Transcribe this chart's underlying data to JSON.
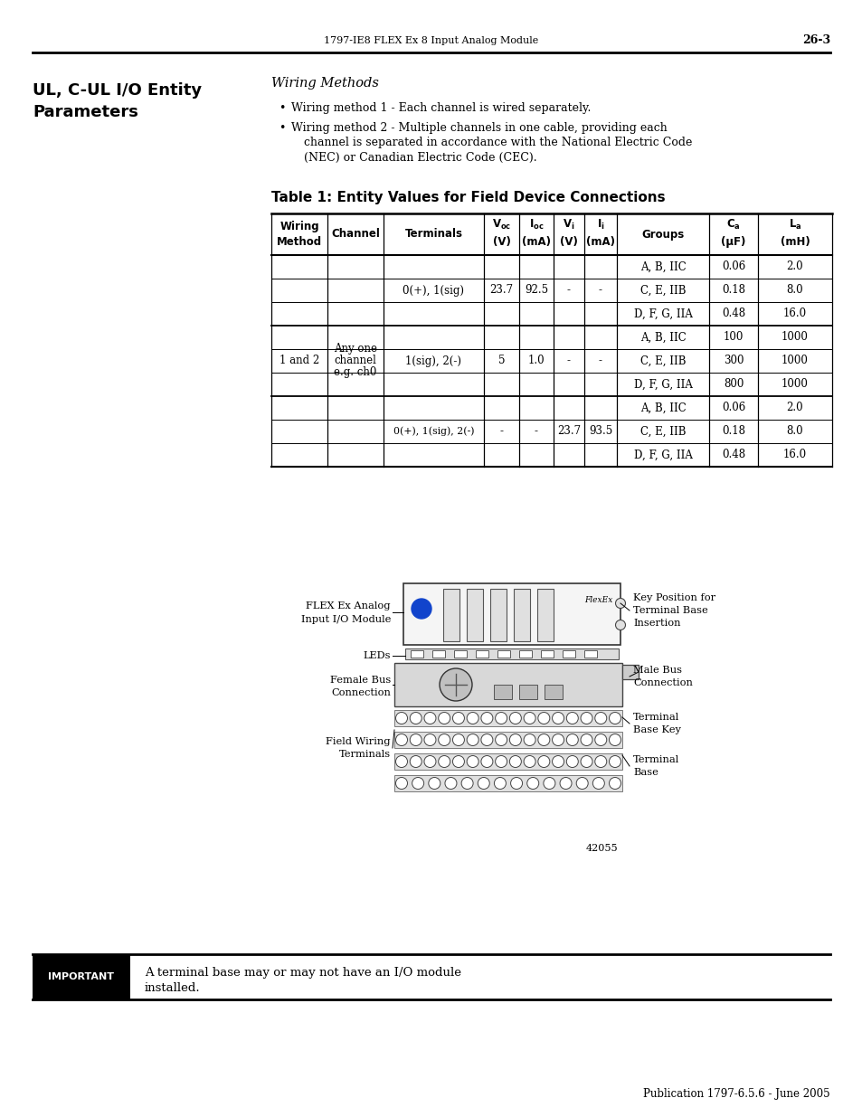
{
  "page_header_left": "1797-IE8 FLEX Ex 8 Input Analog Module",
  "page_header_right": "26-3",
  "section_title_line1": "UL, C-UL I/O Entity",
  "section_title_line2": "Parameters",
  "wiring_methods_title": "Wiring Methods",
  "bullet1": "Wiring method 1 - Each channel is wired separately.",
  "bullet2_line1": "Wiring method 2 - Multiple channels in one cable, providing each",
  "bullet2_line2": "channel is separated in accordance with the National Electric Code",
  "bullet2_line3": "(NEC) or Canadian Electric Code (CEC).",
  "table_title": "Table 1: Entity Values for Field Device Connections",
  "important_label": "IMPORTANT",
  "important_text_line1": "A terminal base may or may not have an I/O module",
  "important_text_line2": "installed.",
  "footer": "Publication 1797-6.5.6 - June 2005",
  "diagram_fig_num": "42055",
  "background_color": "#ffffff",
  "groups": [
    "A, B, IIC",
    "C, E, IIB",
    "D, F, G, IIA",
    "A, B, IIC",
    "C, E, IIB",
    "D, F, G, IIA",
    "A, B, IIC",
    "C, E, IIB",
    "D, F, G, IIA"
  ],
  "ca_vals": [
    "0.06",
    "0.18",
    "0.48",
    "100",
    "300",
    "800",
    "0.06",
    "0.18",
    "0.48"
  ],
  "la_vals": [
    "2.0",
    "8.0",
    "16.0",
    "1000",
    "1000",
    "1000",
    "2.0",
    "8.0",
    "16.0"
  ]
}
